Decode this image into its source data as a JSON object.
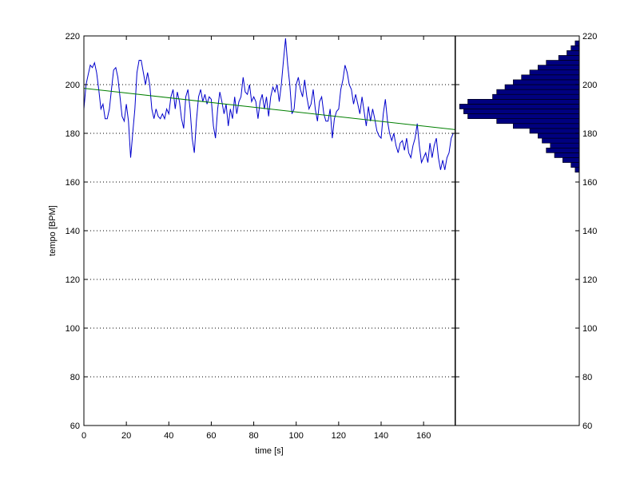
{
  "chart_data": [
    {
      "type": "line",
      "xlabel": "time [s]",
      "ylabel": "tempo [BPM]",
      "xlim": [
        0,
        175
      ],
      "ylim": [
        60,
        220
      ],
      "x_ticks": [
        "0",
        "20",
        "40",
        "60",
        "80",
        "100",
        "120",
        "140",
        "160"
      ],
      "y_ticks": [
        "60",
        "80",
        "100",
        "120",
        "140",
        "160",
        "180",
        "200",
        "220"
      ],
      "grid": "horizontal-dotted",
      "series": [
        {
          "color": "#0000cc",
          "points": [
            [
              0,
              190
            ],
            [
              1,
              200
            ],
            [
              2,
              204
            ],
            [
              3,
              208
            ],
            [
              4,
              207
            ],
            [
              5,
              209
            ],
            [
              6,
              205
            ],
            [
              7,
              198
            ],
            [
              8,
              190
            ],
            [
              9,
              192
            ],
            [
              10,
              186
            ],
            [
              11,
              186
            ],
            [
              12,
              190
            ],
            [
              13,
              198
            ],
            [
              14,
              206
            ],
            [
              15,
              207
            ],
            [
              16,
              203
            ],
            [
              17,
              195
            ],
            [
              18,
              187
            ],
            [
              19,
              185
            ],
            [
              20,
              192
            ],
            [
              21,
              185
            ],
            [
              22,
              170
            ],
            [
              23,
              180
            ],
            [
              24,
              190
            ],
            [
              25,
              205
            ],
            [
              26,
              210
            ],
            [
              27,
              210
            ],
            [
              28,
              205
            ],
            [
              29,
              200
            ],
            [
              30,
              205
            ],
            [
              31,
              200
            ],
            [
              32,
              190
            ],
            [
              33,
              186
            ],
            [
              34,
              190
            ],
            [
              35,
              187
            ],
            [
              36,
              186
            ],
            [
              37,
              188
            ],
            [
              38,
              186
            ],
            [
              39,
              190
            ],
            [
              40,
              188
            ],
            [
              41,
              195
            ],
            [
              42,
              198
            ],
            [
              43,
              190
            ],
            [
              44,
              197
            ],
            [
              45,
              193
            ],
            [
              46,
              186
            ],
            [
              47,
              182
            ],
            [
              48,
              195
            ],
            [
              49,
              198
            ],
            [
              50,
              190
            ],
            [
              51,
              178
            ],
            [
              52,
              172
            ],
            [
              53,
              185
            ],
            [
              54,
              195
            ],
            [
              55,
              198
            ],
            [
              56,
              193
            ],
            [
              57,
              196
            ],
            [
              58,
              192
            ],
            [
              59,
              195
            ],
            [
              60,
              194
            ],
            [
              61,
              183
            ],
            [
              62,
              178
            ],
            [
              63,
              190
            ],
            [
              64,
              197
            ],
            [
              65,
              193
            ],
            [
              66,
              188
            ],
            [
              67,
              192
            ],
            [
              68,
              183
            ],
            [
              69,
              190
            ],
            [
              70,
              186
            ],
            [
              71,
              195
            ],
            [
              72,
              188
            ],
            [
              73,
              193
            ],
            [
              74,
              195
            ],
            [
              75,
              203
            ],
            [
              76,
              197
            ],
            [
              77,
              196
            ],
            [
              78,
              200
            ],
            [
              79,
              193
            ],
            [
              80,
              195
            ],
            [
              81,
              193
            ],
            [
              82,
              186
            ],
            [
              83,
              193
            ],
            [
              84,
              196
            ],
            [
              85,
              190
            ],
            [
              86,
              195
            ],
            [
              87,
              187
            ],
            [
              88,
              195
            ],
            [
              89,
              199
            ],
            [
              90,
              197
            ],
            [
              91,
              200
            ],
            [
              92,
              193
            ],
            [
              93,
              200
            ],
            [
              94,
              210
            ],
            [
              95,
              219
            ],
            [
              96,
              208
            ],
            [
              97,
              200
            ],
            [
              98,
              188
            ],
            [
              99,
              190
            ],
            [
              100,
              200
            ],
            [
              101,
              203
            ],
            [
              102,
              198
            ],
            [
              103,
              195
            ],
            [
              104,
              202
            ],
            [
              105,
              195
            ],
            [
              106,
              190
            ],
            [
              107,
              192
            ],
            [
              108,
              198
            ],
            [
              109,
              190
            ],
            [
              110,
              185
            ],
            [
              111,
              193
            ],
            [
              112,
              195
            ],
            [
              113,
              188
            ],
            [
              114,
              185
            ],
            [
              115,
              185
            ],
            [
              116,
              190
            ],
            [
              117,
              178
            ],
            [
              118,
              186
            ],
            [
              119,
              189
            ],
            [
              120,
              190
            ],
            [
              121,
              198
            ],
            [
              122,
              202
            ],
            [
              123,
              208
            ],
            [
              124,
              205
            ],
            [
              125,
              200
            ],
            [
              126,
              198
            ],
            [
              127,
              192
            ],
            [
              128,
              196
            ],
            [
              129,
              192
            ],
            [
              130,
              188
            ],
            [
              131,
              195
            ],
            [
              132,
              189
            ],
            [
              133,
              183
            ],
            [
              134,
              191
            ],
            [
              135,
              185
            ],
            [
              136,
              190
            ],
            [
              137,
              186
            ],
            [
              138,
              181
            ],
            [
              139,
              179
            ],
            [
              140,
              178
            ],
            [
              141,
              188
            ],
            [
              142,
              194
            ],
            [
              143,
              185
            ],
            [
              144,
              180
            ],
            [
              145,
              177
            ],
            [
              146,
              180
            ],
            [
              147,
              175
            ],
            [
              148,
              172
            ],
            [
              149,
              176
            ],
            [
              150,
              177
            ],
            [
              151,
              173
            ],
            [
              152,
              178
            ],
            [
              153,
              172
            ],
            [
              154,
              170
            ],
            [
              155,
              175
            ],
            [
              156,
              178
            ],
            [
              157,
              184
            ],
            [
              158,
              175
            ],
            [
              159,
              168
            ],
            [
              160,
              170
            ],
            [
              161,
              172
            ],
            [
              162,
              168
            ],
            [
              163,
              176
            ],
            [
              164,
              170
            ],
            [
              165,
              175
            ],
            [
              166,
              178
            ],
            [
              167,
              170
            ],
            [
              168,
              165
            ],
            [
              169,
              169
            ],
            [
              170,
              165
            ],
            [
              171,
              170
            ],
            [
              172,
              172
            ],
            [
              173,
              178
            ],
            [
              174,
              180
            ]
          ]
        },
        {
          "color": "#007f00",
          "points": [
            [
              0,
              198.5
            ],
            [
              175,
              181.5
            ]
          ]
        }
      ]
    },
    {
      "type": "bar",
      "orientation": "horizontal",
      "ylim": [
        60,
        220
      ],
      "y_ticks": [
        "60",
        "80",
        "100",
        "120",
        "140",
        "160",
        "180",
        "200",
        "220"
      ],
      "bar_color": "#00007f",
      "bin_width": 2,
      "bins": [
        {
          "center": 165,
          "value": 1
        },
        {
          "center": 167,
          "value": 2
        },
        {
          "center": 169,
          "value": 4
        },
        {
          "center": 171,
          "value": 6
        },
        {
          "center": 173,
          "value": 8
        },
        {
          "center": 175,
          "value": 7
        },
        {
          "center": 177,
          "value": 9
        },
        {
          "center": 179,
          "value": 10
        },
        {
          "center": 181,
          "value": 12
        },
        {
          "center": 183,
          "value": 16
        },
        {
          "center": 185,
          "value": 20
        },
        {
          "center": 187,
          "value": 27
        },
        {
          "center": 189,
          "value": 28
        },
        {
          "center": 191,
          "value": 29
        },
        {
          "center": 193,
          "value": 27
        },
        {
          "center": 195,
          "value": 21
        },
        {
          "center": 197,
          "value": 20
        },
        {
          "center": 199,
          "value": 18
        },
        {
          "center": 201,
          "value": 16
        },
        {
          "center": 203,
          "value": 14
        },
        {
          "center": 205,
          "value": 12
        },
        {
          "center": 207,
          "value": 10
        },
        {
          "center": 209,
          "value": 8
        },
        {
          "center": 211,
          "value": 5
        },
        {
          "center": 213,
          "value": 3
        },
        {
          "center": 215,
          "value": 2
        },
        {
          "center": 217,
          "value": 1
        }
      ],
      "xlim": [
        0,
        30
      ]
    }
  ]
}
